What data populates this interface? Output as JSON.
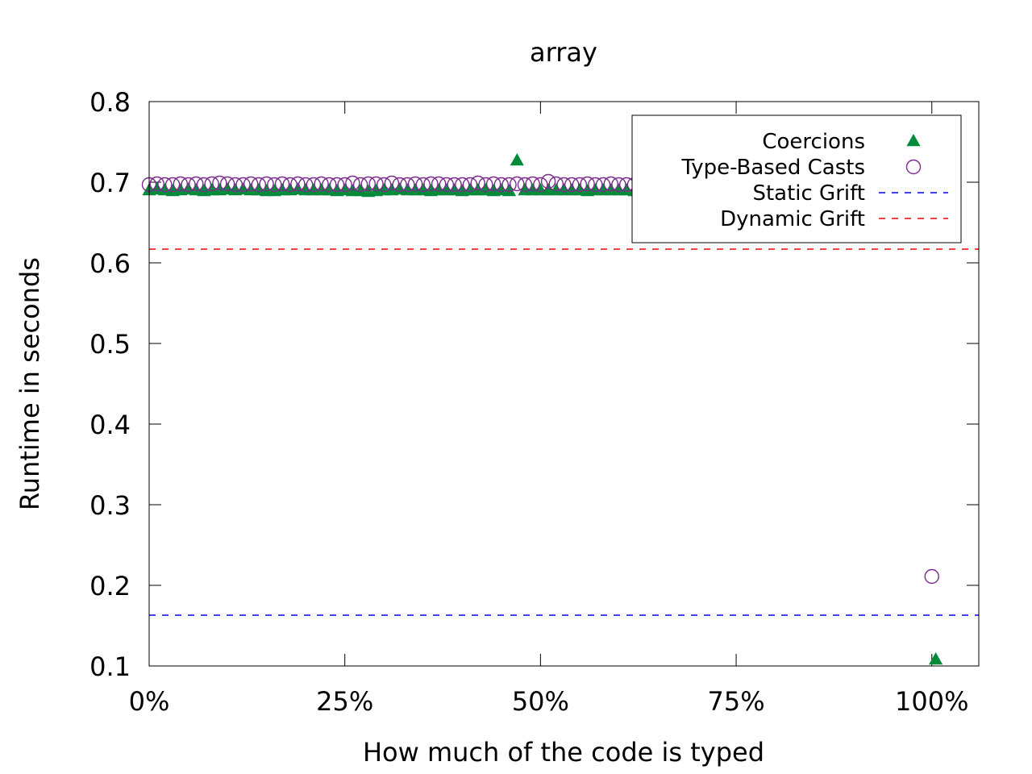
{
  "chart_data": {
    "type": "scatter",
    "title": "array",
    "xlabel": "How much of the code is typed",
    "ylabel": "Runtime in seconds",
    "xlim": [
      0,
      106
    ],
    "ylim": [
      0.1,
      0.8
    ],
    "x_ticks": [
      {
        "value": 0,
        "label": "0%"
      },
      {
        "value": 25,
        "label": "25%"
      },
      {
        "value": 50,
        "label": "50%"
      },
      {
        "value": 75,
        "label": "75%"
      },
      {
        "value": 100,
        "label": "100%"
      }
    ],
    "y_ticks": [
      {
        "value": 0.1,
        "label": "0.1"
      },
      {
        "value": 0.2,
        "label": "0.2"
      },
      {
        "value": 0.3,
        "label": "0.3"
      },
      {
        "value": 0.4,
        "label": "0.4"
      },
      {
        "value": 0.5,
        "label": "0.5"
      },
      {
        "value": 0.6,
        "label": "0.6"
      },
      {
        "value": 0.7,
        "label": "0.7"
      },
      {
        "value": 0.8,
        "label": "0.8"
      }
    ],
    "grid": false,
    "legend_position": "top-right",
    "series": [
      {
        "name": "Coercions",
        "marker": "filled-triangle",
        "color": "#008a3a",
        "x": [
          0,
          1,
          2,
          3,
          4,
          5,
          6,
          7,
          8,
          9,
          10,
          11,
          12,
          13,
          14,
          15,
          16,
          17,
          18,
          19,
          20,
          21,
          22,
          23,
          24,
          25,
          26,
          27,
          28,
          29,
          30,
          31,
          32,
          33,
          34,
          35,
          36,
          37,
          38,
          39,
          40,
          41,
          42,
          43,
          44,
          45,
          46,
          47,
          48,
          49,
          50,
          51,
          52,
          53,
          54,
          55,
          56,
          57,
          58,
          59,
          60,
          61,
          62,
          63,
          64,
          65,
          66,
          100.5
        ],
        "y": [
          0.69,
          0.691,
          0.69,
          0.689,
          0.69,
          0.691,
          0.69,
          0.689,
          0.69,
          0.69,
          0.691,
          0.69,
          0.691,
          0.69,
          0.69,
          0.689,
          0.689,
          0.69,
          0.69,
          0.691,
          0.69,
          0.69,
          0.69,
          0.69,
          0.689,
          0.69,
          0.689,
          0.689,
          0.688,
          0.689,
          0.69,
          0.69,
          0.691,
          0.69,
          0.69,
          0.69,
          0.689,
          0.69,
          0.69,
          0.69,
          0.689,
          0.69,
          0.69,
          0.69,
          0.689,
          0.69,
          0.689,
          0.727,
          0.69,
          0.69,
          0.69,
          0.69,
          0.69,
          0.69,
          0.69,
          0.69,
          0.689,
          0.69,
          0.69,
          0.69,
          0.69,
          0.69,
          0.689,
          0.69,
          0.69,
          0.69,
          0.69,
          0.108
        ]
      },
      {
        "name": "Type-Based Casts",
        "marker": "open-circle",
        "color": "#7b2c8c",
        "x": [
          0,
          1,
          2,
          3,
          4,
          5,
          6,
          7,
          8,
          9,
          10,
          11,
          12,
          13,
          14,
          15,
          16,
          17,
          18,
          19,
          20,
          21,
          22,
          23,
          24,
          25,
          26,
          27,
          28,
          29,
          30,
          31,
          32,
          33,
          34,
          35,
          36,
          37,
          38,
          39,
          40,
          41,
          42,
          43,
          44,
          45,
          46,
          47,
          48,
          49,
          50,
          51,
          52,
          53,
          54,
          55,
          56,
          57,
          58,
          59,
          60,
          61,
          62,
          63,
          64,
          65,
          66,
          100
        ],
        "y": [
          0.697,
          0.698,
          0.697,
          0.697,
          0.698,
          0.697,
          0.698,
          0.697,
          0.698,
          0.699,
          0.698,
          0.697,
          0.697,
          0.698,
          0.697,
          0.698,
          0.697,
          0.698,
          0.697,
          0.698,
          0.697,
          0.697,
          0.698,
          0.697,
          0.697,
          0.697,
          0.699,
          0.697,
          0.698,
          0.698,
          0.697,
          0.699,
          0.697,
          0.697,
          0.698,
          0.697,
          0.698,
          0.698,
          0.697,
          0.697,
          0.697,
          0.697,
          0.699,
          0.697,
          0.698,
          0.697,
          0.697,
          0.698,
          0.697,
          0.698,
          0.697,
          0.701,
          0.698,
          0.697,
          0.697,
          0.697,
          0.698,
          0.697,
          0.697,
          0.698,
          0.697,
          0.697,
          0.697,
          0.697,
          0.697,
          0.697,
          0.697,
          0.211
        ]
      },
      {
        "name": "Static Grift",
        "line": "dashed",
        "color": "#0000ff",
        "y": 0.163
      },
      {
        "name": "Dynamic Grift",
        "line": "dashed",
        "color": "#ff0000",
        "y": 0.617
      }
    ]
  }
}
